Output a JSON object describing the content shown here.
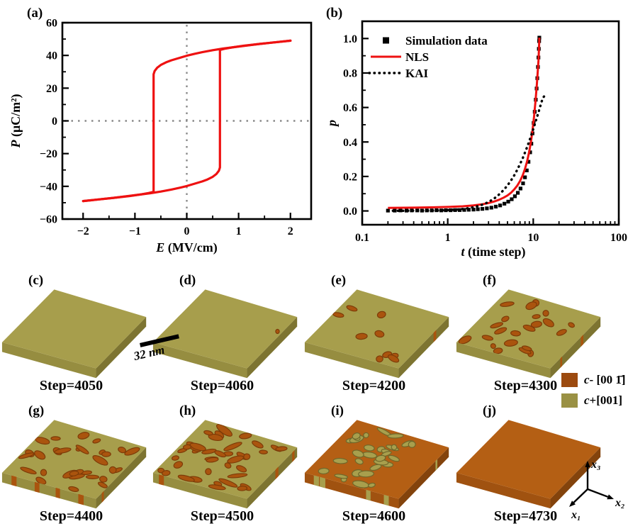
{
  "labels": {
    "a": "(a)",
    "b": "(b)"
  },
  "chart_data": [
    {
      "id": "a",
      "type": "line",
      "title": "",
      "xlabel": {
        "var": "E",
        "rest": " (MV/cm)"
      },
      "ylabel": {
        "var": "P",
        "rest": " (μC/m²)"
      },
      "xlim": [
        -2.4,
        2.4
      ],
      "ylim": [
        -60,
        60
      ],
      "xticks": [
        -2,
        -1,
        0,
        1,
        2
      ],
      "yticks": [
        -60,
        -40,
        -20,
        0,
        20,
        40,
        60
      ],
      "x_minor_step": 0.5,
      "y_minor_step": 10,
      "guides": "dotted-zero-lines",
      "line_color": "#ee1111",
      "series": [
        {
          "name": "hysteresis-upper-branch",
          "points": [
            [
              2,
              49
            ],
            [
              1.7,
              48
            ],
            [
              1.4,
              47
            ],
            [
              1.1,
              45.8
            ],
            [
              0.9,
              45
            ],
            [
              0.7,
              44.2
            ],
            [
              0.5,
              43.2
            ],
            [
              0.3,
              42
            ],
            [
              0.15,
              41
            ],
            [
              0,
              39.8
            ],
            [
              -0.15,
              38.4
            ],
            [
              -0.3,
              37
            ],
            [
              -0.4,
              35.8
            ],
            [
              -0.5,
              34.2
            ],
            [
              -0.57,
              32.5
            ],
            [
              -0.62,
              30.5
            ],
            [
              -0.64,
              28.5
            ],
            [
              -0.64,
              -43.3
            ],
            [
              -0.75,
              -44.2
            ],
            [
              -0.9,
              -45
            ],
            [
              -1.1,
              -45.9
            ],
            [
              -1.4,
              -47
            ],
            [
              -1.7,
              -48
            ],
            [
              -2,
              -49
            ]
          ]
        },
        {
          "name": "hysteresis-lower-branch",
          "points": [
            [
              -2,
              -49
            ],
            [
              -1.7,
              -48
            ],
            [
              -1.4,
              -47
            ],
            [
              -1.1,
              -45.8
            ],
            [
              -0.9,
              -45
            ],
            [
              -0.7,
              -44.2
            ],
            [
              -0.5,
              -43.2
            ],
            [
              -0.3,
              -42
            ],
            [
              -0.15,
              -41
            ],
            [
              0,
              -39.8
            ],
            [
              0.15,
              -38.4
            ],
            [
              0.3,
              -37
            ],
            [
              0.4,
              -35.8
            ],
            [
              0.5,
              -34.2
            ],
            [
              0.57,
              -32.5
            ],
            [
              0.62,
              -30.5
            ],
            [
              0.64,
              -28.5
            ],
            [
              0.64,
              43.3
            ],
            [
              0.75,
              44.2
            ],
            [
              0.9,
              45
            ],
            [
              1.1,
              45.9
            ],
            [
              1.4,
              47
            ],
            [
              1.7,
              48
            ],
            [
              2,
              49
            ]
          ]
        }
      ]
    },
    {
      "id": "b",
      "type": "line",
      "xscale": "log",
      "xlabel": {
        "var": "t",
        "rest": " (time step)"
      },
      "ylabel": {
        "var": "p",
        "rest": ""
      },
      "xlim": [
        0.1,
        100
      ],
      "ylim": [
        -0.08,
        1.1
      ],
      "xticks": [
        0.1,
        1,
        10,
        100
      ],
      "yticks": [
        0.0,
        0.2,
        0.4,
        0.6,
        0.8,
        1.0
      ],
      "y_minor_step": 0.1,
      "legend": [
        {
          "label": "Simulation data",
          "marker": "square",
          "color": "#000000"
        },
        {
          "label": "NLS",
          "marker": "solid-line",
          "color": "#ee1111"
        },
        {
          "label": "KAI",
          "marker": "dotted-line",
          "color": "#000000"
        }
      ],
      "series": [
        {
          "name": "Simulation data",
          "marker": "square",
          "color": "#000000",
          "points": [
            [
              0.2,
              0.002
            ],
            [
              0.24,
              0.002
            ],
            [
              0.28,
              0.003
            ],
            [
              0.33,
              0.002
            ],
            [
              0.38,
              0.003
            ],
            [
              0.44,
              0.003
            ],
            [
              0.5,
              0.002
            ],
            [
              0.57,
              0.003
            ],
            [
              0.65,
              0.003
            ],
            [
              0.74,
              0.004
            ],
            [
              0.84,
              0.003
            ],
            [
              0.95,
              0.004
            ],
            [
              1.08,
              0.004
            ],
            [
              1.22,
              0.005
            ],
            [
              1.38,
              0.005
            ],
            [
              1.56,
              0.006
            ],
            [
              1.76,
              0.007
            ],
            [
              2,
              0.008
            ],
            [
              2.25,
              0.01
            ],
            [
              2.54,
              0.012
            ],
            [
              2.87,
              0.015
            ],
            [
              3.24,
              0.019
            ],
            [
              3.65,
              0.025
            ],
            [
              4.1,
              0.032
            ],
            [
              4.6,
              0.042
            ],
            [
              5.1,
              0.054
            ],
            [
              5.6,
              0.068
            ],
            [
              6.1,
              0.085
            ],
            [
              6.6,
              0.105
            ],
            [
              7.1,
              0.13
            ],
            [
              7.6,
              0.16
            ],
            [
              8,
              0.195
            ],
            [
              8.4,
              0.235
            ],
            [
              8.8,
              0.285
            ],
            [
              9.2,
              0.34
            ],
            [
              9.5,
              0.39
            ],
            [
              9.8,
              0.45
            ],
            [
              10.1,
              0.51
            ],
            [
              10.4,
              0.575
            ],
            [
              10.7,
              0.645
            ],
            [
              10.95,
              0.71
            ],
            [
              11.15,
              0.77
            ],
            [
              11.35,
              0.835
            ],
            [
              11.5,
              0.89
            ],
            [
              11.62,
              0.94
            ],
            [
              11.72,
              0.985
            ],
            [
              11.78,
              1.005
            ]
          ]
        },
        {
          "name": "NLS",
          "style": "solid",
          "color": "#ee1111",
          "points": [
            [
              0.2,
              0.018
            ],
            [
              0.4,
              0.019
            ],
            [
              0.7,
              0.021
            ],
            [
              1,
              0.023
            ],
            [
              1.5,
              0.027
            ],
            [
              2,
              0.032
            ],
            [
              2.5,
              0.038
            ],
            [
              3,
              0.046
            ],
            [
              3.5,
              0.055
            ],
            [
              4,
              0.065
            ],
            [
              4.5,
              0.077
            ],
            [
              5,
              0.09
            ],
            [
              5.5,
              0.106
            ],
            [
              6,
              0.125
            ],
            [
              6.5,
              0.147
            ],
            [
              7,
              0.173
            ],
            [
              7.5,
              0.205
            ],
            [
              8,
              0.243
            ],
            [
              8.5,
              0.29
            ],
            [
              9,
              0.347
            ],
            [
              9.4,
              0.402
            ],
            [
              9.8,
              0.468
            ],
            [
              10.2,
              0.545
            ],
            [
              10.6,
              0.632
            ],
            [
              11,
              0.728
            ],
            [
              11.3,
              0.81
            ],
            [
              11.5,
              0.872
            ],
            [
              11.65,
              0.93
            ],
            [
              11.78,
              1.005
            ]
          ]
        },
        {
          "name": "KAI",
          "style": "dotted",
          "color": "#000000",
          "points": [
            [
              0.2,
              0.001
            ],
            [
              0.3,
              0.001
            ],
            [
              0.45,
              0.002
            ],
            [
              0.6,
              0.002
            ],
            [
              0.8,
              0.003
            ],
            [
              1,
              0.005
            ],
            [
              1.3,
              0.008
            ],
            [
              1.6,
              0.013
            ],
            [
              2,
              0.021
            ],
            [
              2.4,
              0.032
            ],
            [
              2.8,
              0.045
            ],
            [
              3.2,
              0.06
            ],
            [
              3.6,
              0.077
            ],
            [
              4,
              0.096
            ],
            [
              4.5,
              0.121
            ],
            [
              5,
              0.148
            ],
            [
              5.5,
              0.177
            ],
            [
              6,
              0.207
            ],
            [
              6.5,
              0.239
            ],
            [
              7,
              0.271
            ],
            [
              7.5,
              0.304
            ],
            [
              8,
              0.338
            ],
            [
              8.5,
              0.372
            ],
            [
              9,
              0.406
            ],
            [
              9.5,
              0.44
            ],
            [
              10,
              0.474
            ],
            [
              10.5,
              0.508
            ],
            [
              11,
              0.54
            ],
            [
              11.5,
              0.572
            ],
            [
              12,
              0.603
            ],
            [
              12.5,
              0.632
            ],
            [
              13,
              0.655
            ],
            [
              13.4,
              0.665
            ]
          ]
        }
      ]
    }
  ],
  "snapshots": {
    "scale_bar_label": "32 nm",
    "legend": [
      {
        "var": "c",
        "rest": "- [00 1̄]",
        "color": "#9c4a0f"
      },
      {
        "var": "c",
        "rest": "+[001]",
        "color": "#9a9144"
      }
    ],
    "axes_triad": {
      "x1": "x₁",
      "x2": "x₂",
      "x3": "x₃"
    },
    "panels": [
      {
        "label": "(c)",
        "step_label": "Step=4050",
        "base": "olive",
        "blobs": 0,
        "blob_min": 0,
        "blob_max": 0,
        "stripes": 0,
        "bias": "none",
        "seed": 11
      },
      {
        "label": "(d)",
        "step_label": "Step=4060",
        "base": "olive",
        "blobs": 1,
        "blob_min": 2.5,
        "blob_max": 3.5,
        "stripes": 0,
        "bias": "edge",
        "seed": 22
      },
      {
        "label": "(e)",
        "step_label": "Step=4200",
        "base": "olive",
        "blobs": 9,
        "blob_min": 3,
        "blob_max": 9,
        "stripes": 1,
        "bias": "none",
        "seed": 33
      },
      {
        "label": "(f)",
        "step_label": "Step=4300",
        "base": "olive",
        "blobs": 22,
        "blob_min": 3,
        "blob_max": 11,
        "stripes": 2,
        "bias": "none",
        "seed": 44
      },
      {
        "label": "(g)",
        "step_label": "Step=4400",
        "base": "olive",
        "blobs": 30,
        "blob_min": 3.5,
        "blob_max": 13,
        "stripes": 5,
        "bias": "none",
        "seed": 55
      },
      {
        "label": "(h)",
        "step_label": "Step=4500",
        "base": "olive",
        "blobs": 38,
        "blob_min": 4,
        "blob_max": 15,
        "stripes": 6,
        "bias": "none",
        "seed": 66
      },
      {
        "label": "(i)",
        "step_label": "Step=4600",
        "base": "orange",
        "blobs": 32,
        "blob_min": 3.5,
        "blob_max": 12,
        "stripes": 6,
        "bias": "left",
        "seed": 77
      },
      {
        "label": "(j)",
        "step_label": "Step=4730",
        "base": "orange",
        "blobs": 0,
        "blob_min": 0,
        "blob_max": 0,
        "stripes": 0,
        "bias": "none",
        "seed": 88
      }
    ]
  },
  "colors": {
    "red": "#ee1111",
    "axis": "#000000",
    "dotted_guide": "#8a8a8a",
    "olive_top": "#a79e4c",
    "olive_left": "#968d40",
    "olive_right": "#7d7431",
    "orange_top": "#b45f14",
    "orange_left": "#a05210",
    "orange_right": "#83430c",
    "orange_blob": "#aa540e",
    "orange_blob_edge": "#7c3b08",
    "olive_blob": "#a89f4d",
    "olive_blob_edge": "#6e672a"
  }
}
